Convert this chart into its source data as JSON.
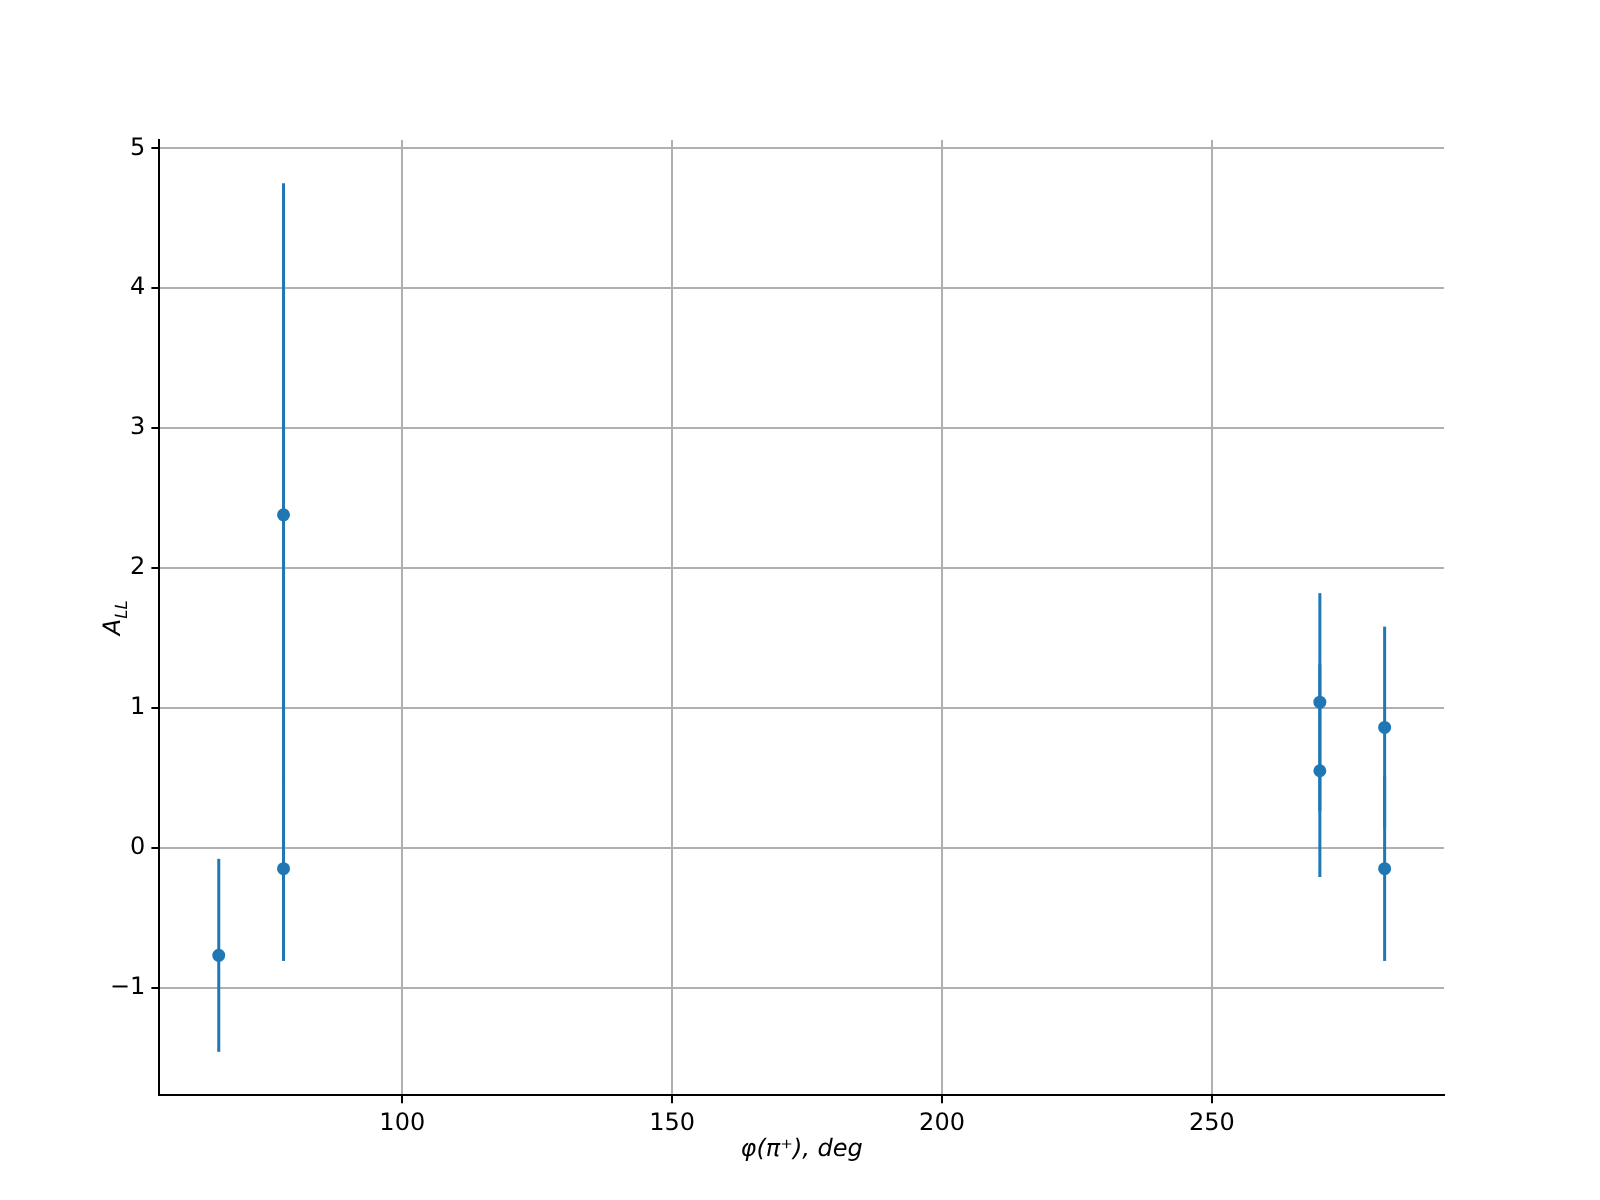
{
  "chart_data": {
    "type": "scatter",
    "xlabel": "φ(π⁺), deg",
    "ylabel": "A$_{LL}$",
    "x": [
      66,
      78,
      78,
      270,
      270,
      282,
      282
    ],
    "series": [
      {
        "color": "#1f77b4",
        "values": [
          -0.77,
          2.38,
          -0.15,
          1.04,
          0.55,
          0.86,
          -0.15
        ],
        "errors": [
          0.69,
          2.37,
          0.66,
          0.78,
          0.76,
          0.72,
          0.66
        ]
      }
    ],
    "xlim": [
      55,
      293
    ],
    "xticks": [
      100,
      150,
      200,
      250
    ],
    "ylim": [
      -1.77,
      5.06
    ],
    "yticks": [
      -1,
      0,
      1,
      2,
      3,
      4,
      5
    ],
    "grid": true,
    "marker": "circle",
    "legend": false
  }
}
